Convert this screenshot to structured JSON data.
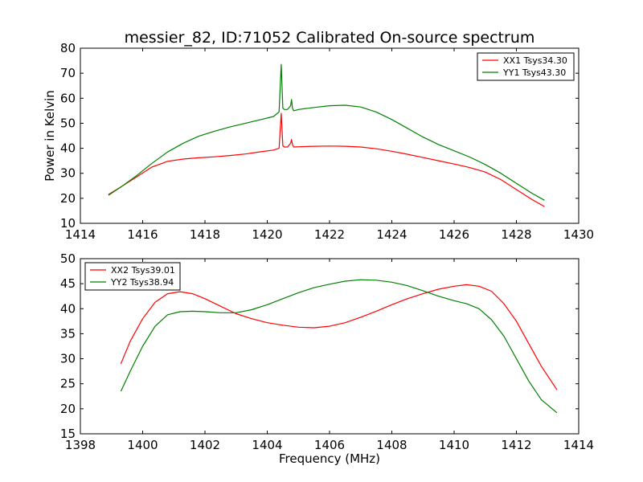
{
  "figure": {
    "title": "messier_82, ID:71052 Calibrated On-source spectrum"
  },
  "chart_data": [
    {
      "type": "line",
      "title": "messier_82, ID:71052 Calibrated On-source spectrum",
      "xlabel": "",
      "ylabel": "Power in Kelvin",
      "xlim": [
        1414,
        1430
      ],
      "ylim": [
        10,
        80
      ],
      "xticks": [
        "1414",
        "1416",
        "1418",
        "1420",
        "1422",
        "1424",
        "1426",
        "1428",
        "1430"
      ],
      "yticks": [
        "10",
        "20",
        "30",
        "40",
        "50",
        "60",
        "70",
        "80"
      ],
      "grid": false,
      "legend_position": "top-right",
      "series": [
        {
          "name": "XX1 Tsys34.30",
          "color": "#ff0000",
          "x": [
            1414.9,
            1415.3,
            1415.8,
            1416.3,
            1416.8,
            1417.3,
            1417.8,
            1418.3,
            1418.8,
            1419.3,
            1419.8,
            1420.2,
            1420.38,
            1420.45,
            1420.5,
            1420.55,
            1420.65,
            1420.75,
            1420.78,
            1420.81,
            1420.85,
            1421.0,
            1421.5,
            1422.0,
            1422.5,
            1423.0,
            1423.5,
            1424.0,
            1424.5,
            1425.0,
            1425.5,
            1426.0,
            1426.5,
            1427.0,
            1427.5,
            1428.0,
            1428.5,
            1428.9
          ],
          "y": [
            21.5,
            24.5,
            28.5,
            32.5,
            34.8,
            35.7,
            36.2,
            36.6,
            37.1,
            37.7,
            38.6,
            39.3,
            40.0,
            54.0,
            41.0,
            40.5,
            40.5,
            42.0,
            43.5,
            41.5,
            40.5,
            40.6,
            40.8,
            40.9,
            40.8,
            40.5,
            39.8,
            38.8,
            37.6,
            36.3,
            35.0,
            33.7,
            32.3,
            30.5,
            27.5,
            23.5,
            19.5,
            16.7
          ]
        },
        {
          "name": "YY1 Tsys43.30",
          "color": "#008000",
          "x": [
            1414.9,
            1415.3,
            1415.8,
            1416.3,
            1416.8,
            1417.3,
            1417.8,
            1418.3,
            1418.8,
            1419.3,
            1419.8,
            1420.2,
            1420.38,
            1420.45,
            1420.5,
            1420.55,
            1420.65,
            1420.75,
            1420.78,
            1420.81,
            1420.85,
            1421.0,
            1421.5,
            1422.0,
            1422.5,
            1423.0,
            1423.5,
            1424.0,
            1424.5,
            1425.0,
            1425.5,
            1426.0,
            1426.5,
            1427.0,
            1427.5,
            1428.0,
            1428.5,
            1428.9
          ],
          "y": [
            21.2,
            24.5,
            29.0,
            34.0,
            38.5,
            42.0,
            44.8,
            46.8,
            48.5,
            50.0,
            51.5,
            52.7,
            54.5,
            73.5,
            56.0,
            55.5,
            55.5,
            57.0,
            59.5,
            56.0,
            55.0,
            55.5,
            56.3,
            57.0,
            57.2,
            56.5,
            54.5,
            51.5,
            48.0,
            44.5,
            41.5,
            39.0,
            36.5,
            33.5,
            30.0,
            26.0,
            22.0,
            19.2
          ]
        }
      ]
    },
    {
      "type": "line",
      "title": "",
      "xlabel": "Frequency (MHz)",
      "ylabel": "",
      "xlim": [
        1398,
        1414
      ],
      "ylim": [
        15,
        50
      ],
      "xticks": [
        "1398",
        "1400",
        "1402",
        "1404",
        "1406",
        "1408",
        "1410",
        "1412",
        "1414"
      ],
      "yticks": [
        "15",
        "20",
        "25",
        "30",
        "35",
        "40",
        "45",
        "50"
      ],
      "grid": false,
      "legend_position": "top-left",
      "series": [
        {
          "name": "XX2 Tsys39.01",
          "color": "#ff0000",
          "x": [
            1399.3,
            1399.6,
            1400.0,
            1400.4,
            1400.8,
            1401.2,
            1401.6,
            1402.0,
            1402.5,
            1403.0,
            1403.5,
            1404.0,
            1404.5,
            1405.0,
            1405.5,
            1406.0,
            1406.5,
            1407.0,
            1407.5,
            1408.0,
            1408.5,
            1409.0,
            1409.5,
            1410.0,
            1410.4,
            1410.8,
            1411.2,
            1411.6,
            1412.0,
            1412.4,
            1412.8,
            1413.3
          ],
          "y": [
            29.0,
            33.5,
            38.0,
            41.3,
            43.0,
            43.4,
            43.0,
            42.0,
            40.5,
            39.0,
            38.0,
            37.2,
            36.7,
            36.3,
            36.2,
            36.5,
            37.2,
            38.3,
            39.5,
            40.8,
            42.0,
            43.0,
            43.9,
            44.5,
            44.8,
            44.5,
            43.5,
            41.0,
            37.5,
            33.0,
            28.5,
            23.8
          ]
        },
        {
          "name": "YY2 Tsys38.94",
          "color": "#008000",
          "x": [
            1399.3,
            1399.6,
            1400.0,
            1400.4,
            1400.8,
            1401.2,
            1401.6,
            1402.0,
            1402.5,
            1403.0,
            1403.5,
            1404.0,
            1404.5,
            1405.0,
            1405.5,
            1406.0,
            1406.5,
            1407.0,
            1407.5,
            1408.0,
            1408.5,
            1409.0,
            1409.5,
            1410.0,
            1410.4,
            1410.8,
            1411.2,
            1411.6,
            1412.0,
            1412.4,
            1412.8,
            1413.3
          ],
          "y": [
            23.5,
            27.5,
            32.5,
            36.5,
            38.8,
            39.4,
            39.5,
            39.4,
            39.2,
            39.2,
            39.8,
            40.8,
            42.0,
            43.2,
            44.2,
            44.9,
            45.5,
            45.8,
            45.7,
            45.3,
            44.6,
            43.6,
            42.5,
            41.6,
            41.0,
            40.0,
            37.8,
            34.5,
            30.0,
            25.5,
            21.8,
            19.2
          ]
        }
      ]
    }
  ]
}
